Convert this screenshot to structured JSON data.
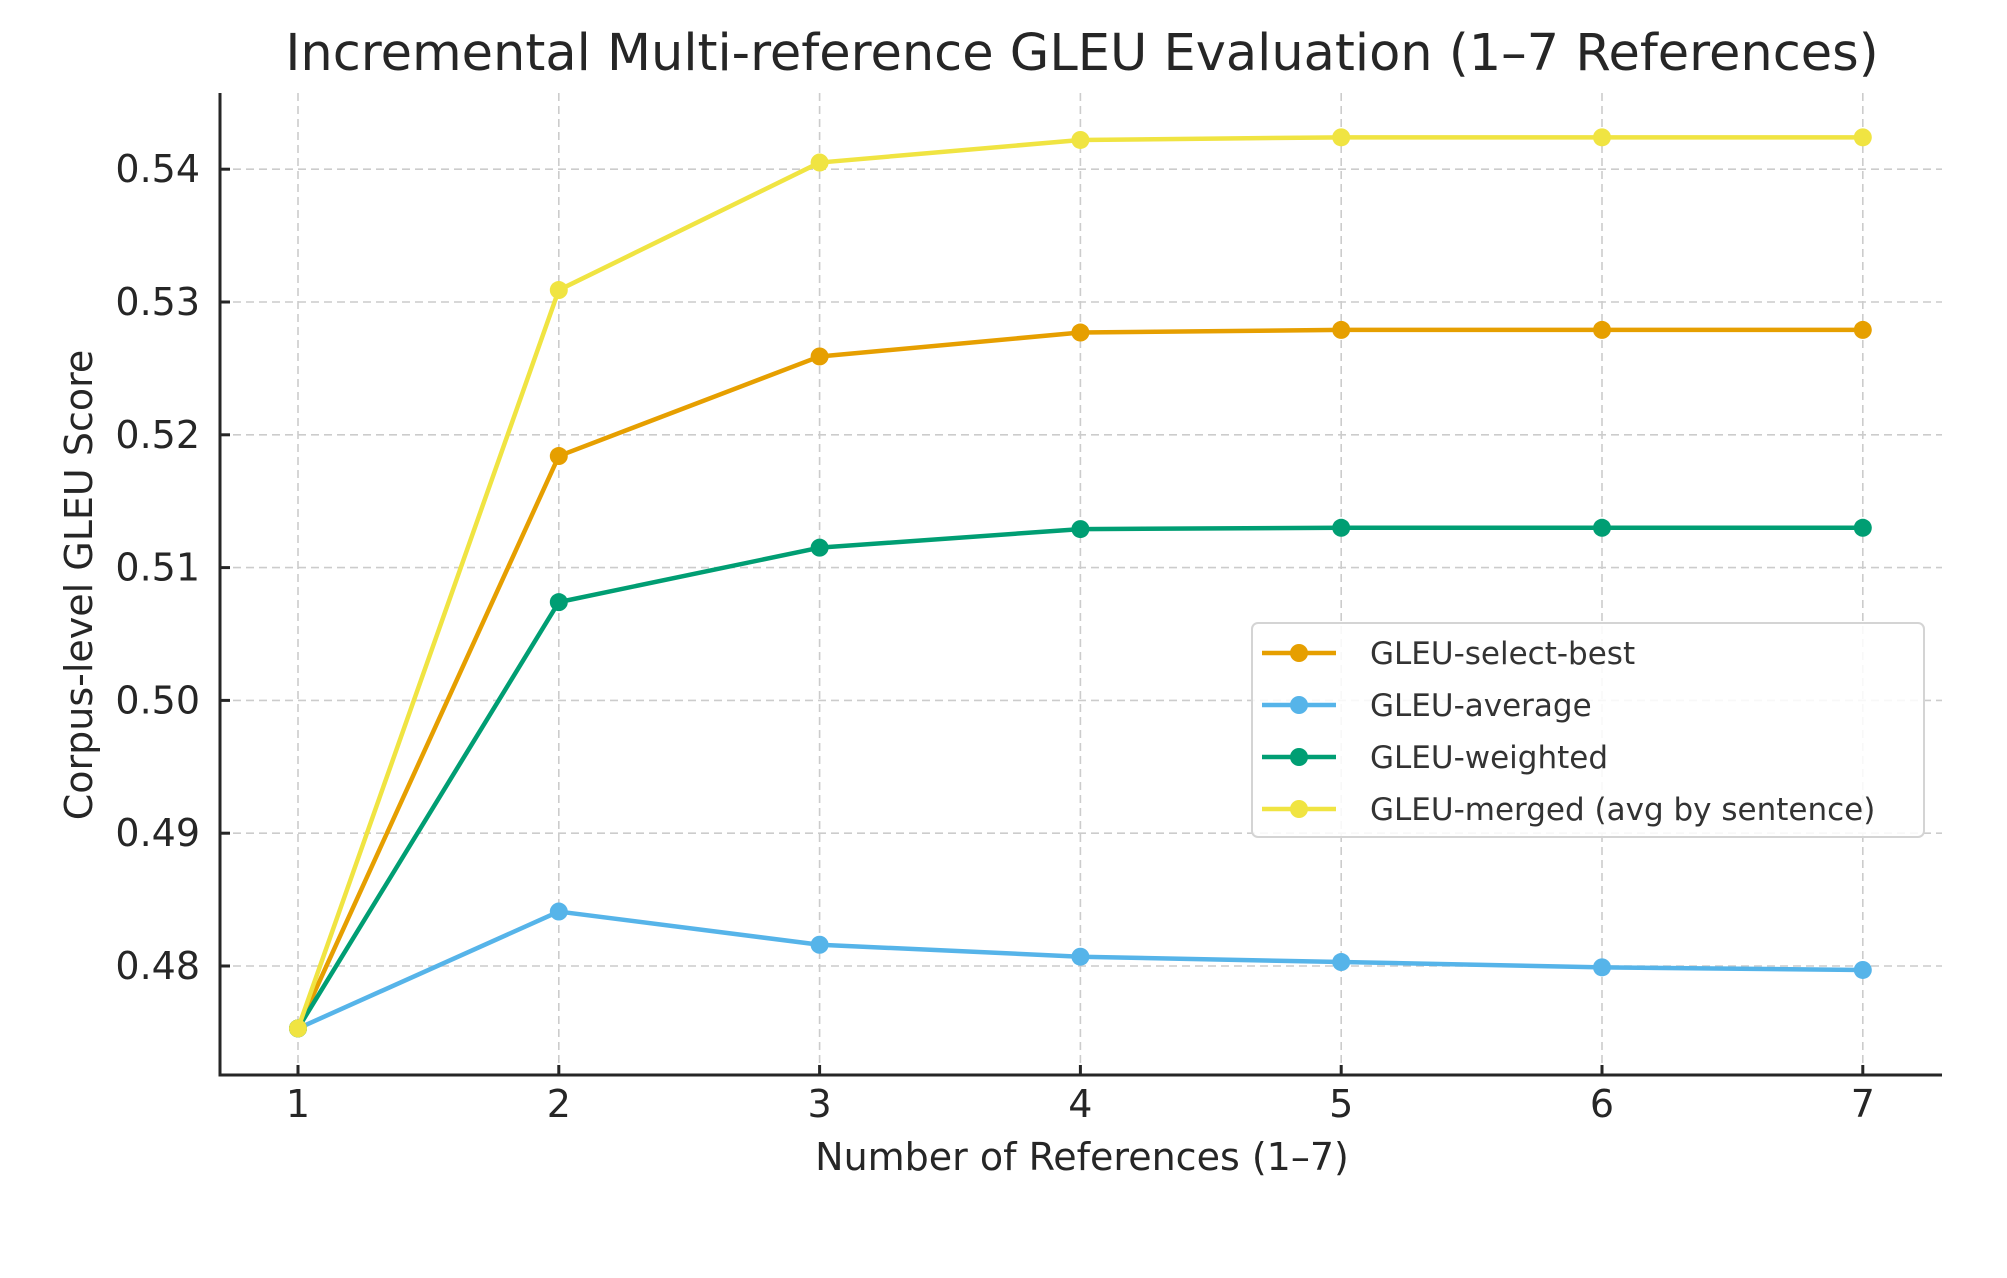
{
  "chart_data": {
    "type": "line",
    "title": "Incremental Multi-reference GLEU Evaluation (1–7 References)",
    "xlabel": "Number of References (1–7)",
    "ylabel": "Corpus-level GLEU Score",
    "x": [
      1,
      2,
      3,
      4,
      5,
      6,
      7
    ],
    "xlim": [
      0.7,
      7.3
    ],
    "ylim": [
      0.4717,
      0.5457
    ],
    "xticks": [
      "1",
      "2",
      "3",
      "4",
      "5",
      "6",
      "7"
    ],
    "yticks": [
      0.48,
      0.49,
      0.5,
      0.51,
      0.52,
      0.53,
      0.54
    ],
    "ytick_labels": [
      "0.48",
      "0.49",
      "0.50",
      "0.51",
      "0.52",
      "0.53",
      "0.54"
    ],
    "grid": true,
    "legend_position": "center-right",
    "series": [
      {
        "name": "GLEU-select-best",
        "color": "#E69F00",
        "values": [
          0.4753,
          0.5184,
          0.5259,
          0.5277,
          0.5279,
          0.5279,
          0.5279
        ]
      },
      {
        "name": "GLEU-average",
        "color": "#56B4E9",
        "values": [
          0.4753,
          0.4841,
          0.4816,
          0.4807,
          0.4803,
          0.4799,
          0.4797
        ]
      },
      {
        "name": "GLEU-weighted",
        "color": "#009E73",
        "values": [
          0.4753,
          0.5074,
          0.5115,
          0.5129,
          0.513,
          0.513,
          0.513
        ]
      },
      {
        "name": "GLEU-merged (avg by sentence)",
        "color": "#F0E442",
        "values": [
          0.4753,
          0.5309,
          0.5405,
          0.5422,
          0.5424,
          0.5424,
          0.5424
        ]
      }
    ]
  }
}
